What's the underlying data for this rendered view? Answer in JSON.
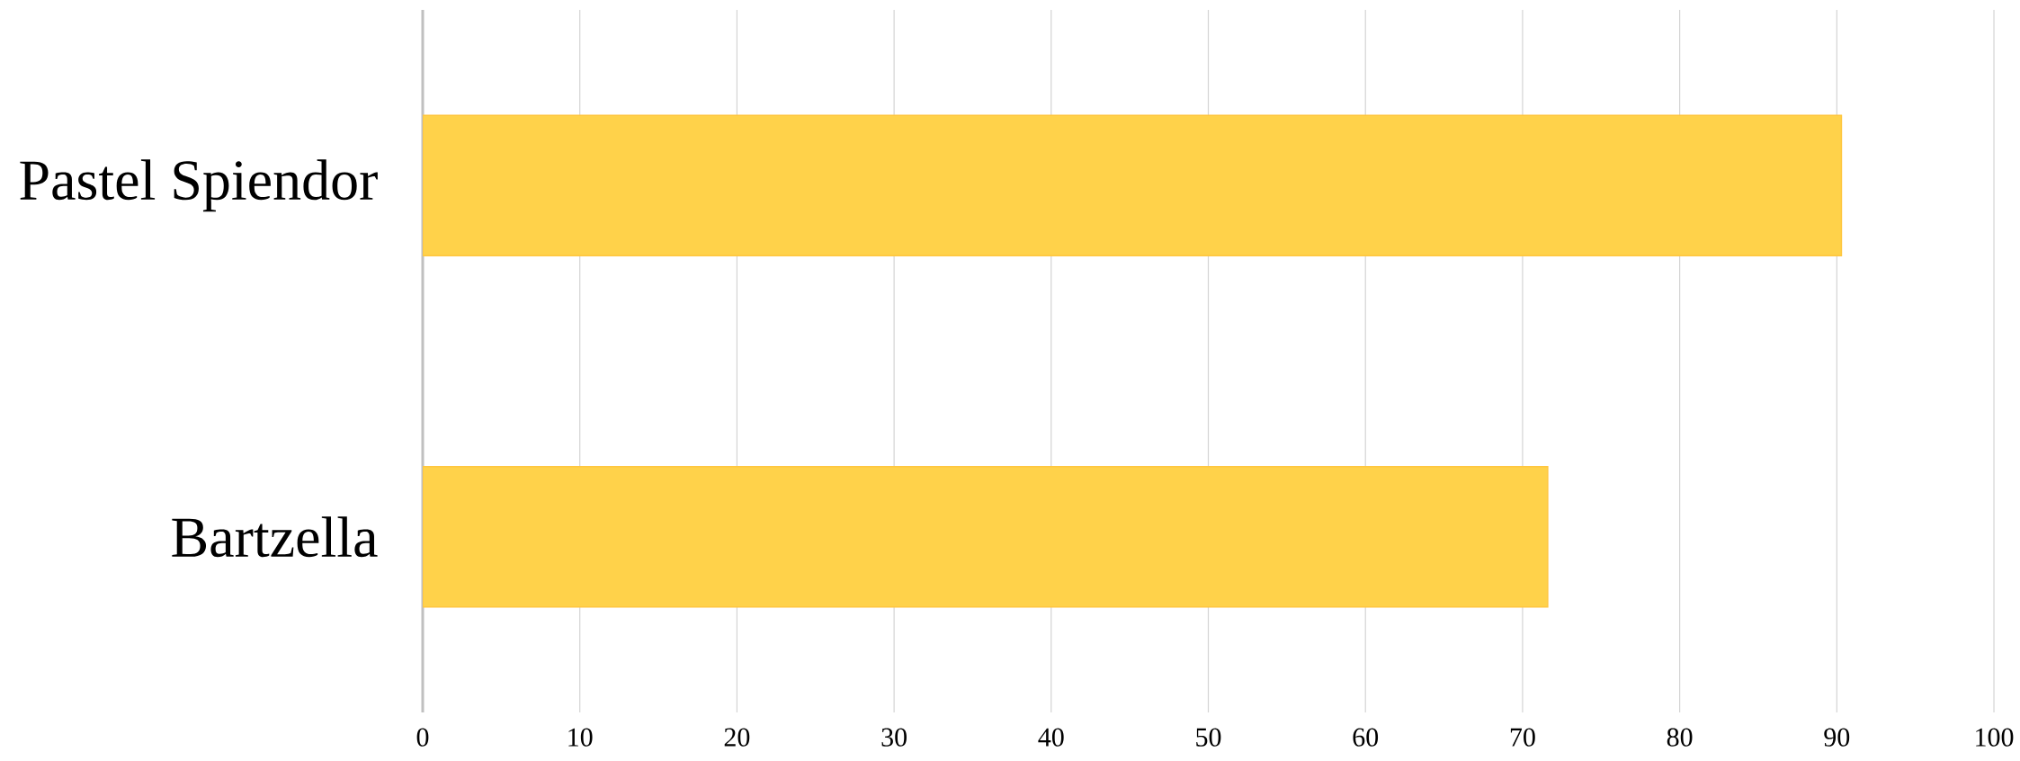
{
  "chart_data": {
    "type": "bar",
    "orientation": "horizontal",
    "categories": [
      "Pastel Spiendor",
      "Bartzella"
    ],
    "values": [
      90.3,
      71.6
    ],
    "color": "#ffd24a",
    "xlim": [
      0,
      100
    ],
    "xticks": [
      0,
      10,
      20,
      30,
      40,
      50,
      60,
      70,
      80,
      90,
      100
    ],
    "grid": "x"
  }
}
